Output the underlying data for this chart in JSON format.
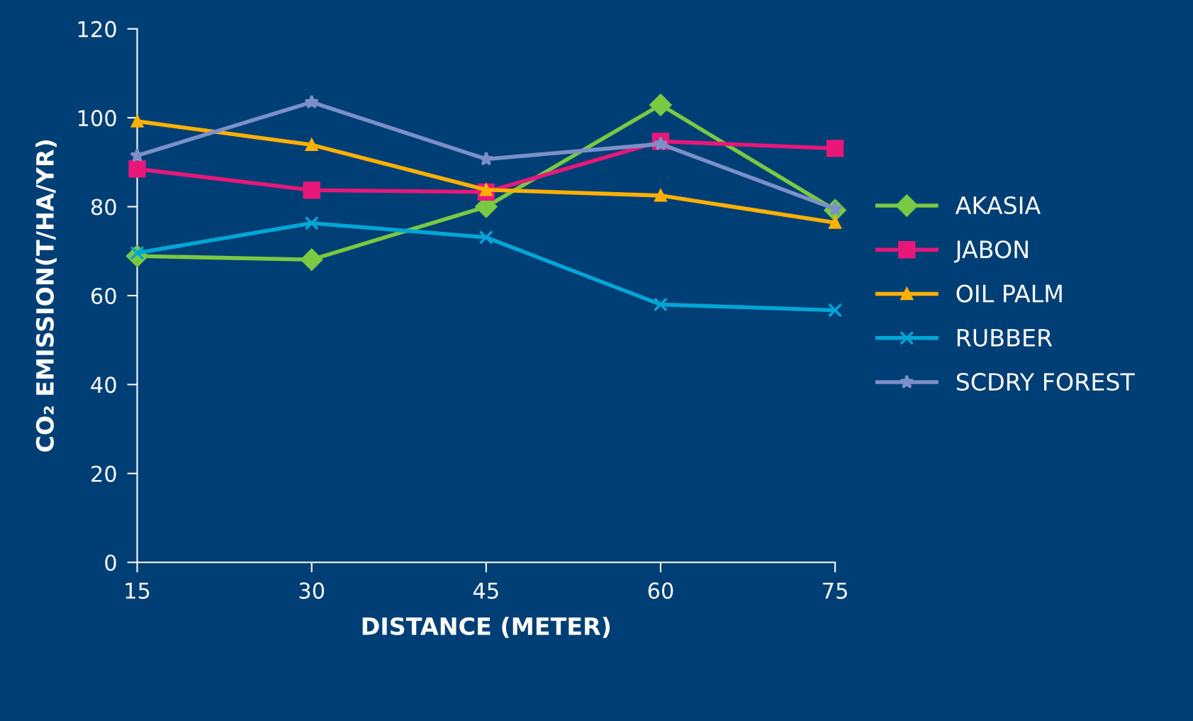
{
  "chart_data": {
    "type": "line",
    "xlabel": "DISTANCE (METER)",
    "ylabel": "CO₂ EMISSION(T/HA/YR)",
    "x": [
      15,
      30,
      45,
      60,
      75
    ],
    "xlim": [
      15,
      75
    ],
    "xticks": [
      15,
      30,
      45,
      60,
      75
    ],
    "ylim": [
      0,
      120
    ],
    "yticks": [
      0,
      20,
      40,
      60,
      80,
      100,
      120
    ],
    "grid": false,
    "legend": "right",
    "line_style": "solid",
    "series": [
      {
        "name": "AKASIA",
        "color": "#7ac943",
        "marker": "diamond",
        "values": [
          68.9,
          68.1,
          80.0,
          102.9,
          79.2
        ]
      },
      {
        "name": "JABON",
        "color": "#e8177a",
        "marker": "square",
        "values": [
          88.5,
          83.7,
          83.3,
          94.7,
          93.1
        ]
      },
      {
        "name": "OIL PALM",
        "color": "#ffb000",
        "marker": "triangle",
        "values": [
          99.2,
          93.9,
          83.8,
          82.5,
          76.4
        ]
      },
      {
        "name": "RUBBER",
        "color": "#00a6d6",
        "marker": "cross",
        "values": [
          69.6,
          76.3,
          73.1,
          58.0,
          56.7
        ]
      },
      {
        "name": "SCDRY FOREST",
        "color": "#7b8fc9",
        "marker": "star",
        "values": [
          91.5,
          103.5,
          90.7,
          94.1,
          79.5
        ]
      }
    ]
  }
}
